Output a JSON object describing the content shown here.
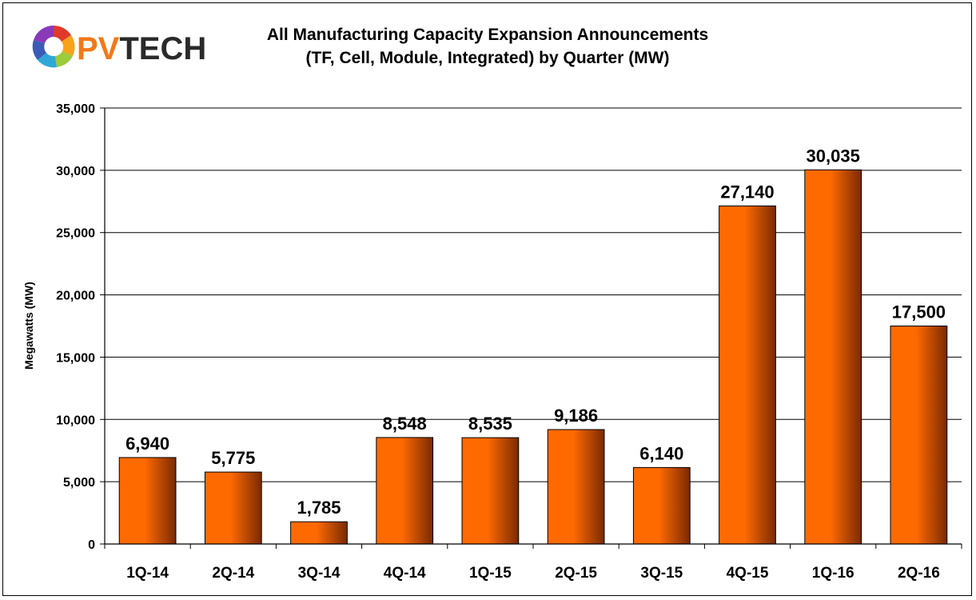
{
  "logo": {
    "text_accent": "PV",
    "text_rest": "TECH"
  },
  "chart_data": {
    "type": "bar",
    "title": "All Manufacturing Capacity Expansion Announcements",
    "subtitle": "(TF, Cell, Module, Integrated) by Quarter (MW)",
    "xlabel": "",
    "ylabel": "Megawatts (MW)",
    "ylim": [
      0,
      35000
    ],
    "yticks": [
      0,
      5000,
      10000,
      15000,
      20000,
      25000,
      30000,
      35000
    ],
    "ytick_labels": [
      "0",
      "5,000",
      "10,000",
      "15,000",
      "20,000",
      "25,000",
      "30,000",
      "35,000"
    ],
    "grid": true,
    "categories": [
      "1Q-14",
      "2Q-14",
      "3Q-14",
      "4Q-14",
      "1Q-15",
      "2Q-15",
      "3Q-15",
      "4Q-15",
      "1Q-16",
      "2Q-16"
    ],
    "values": [
      6940,
      5775,
      1785,
      8548,
      8535,
      9186,
      6140,
      27140,
      30035,
      17500
    ],
    "data_labels": [
      "6,940",
      "5,775",
      "1,785",
      "8,548",
      "8,535",
      "9,186",
      "6,140",
      "27,140",
      "30,035",
      "17,500"
    ],
    "colors": {
      "bar_light": "#ff6a00",
      "bar_dark": "#7a2a00",
      "grid": "#000000"
    }
  }
}
